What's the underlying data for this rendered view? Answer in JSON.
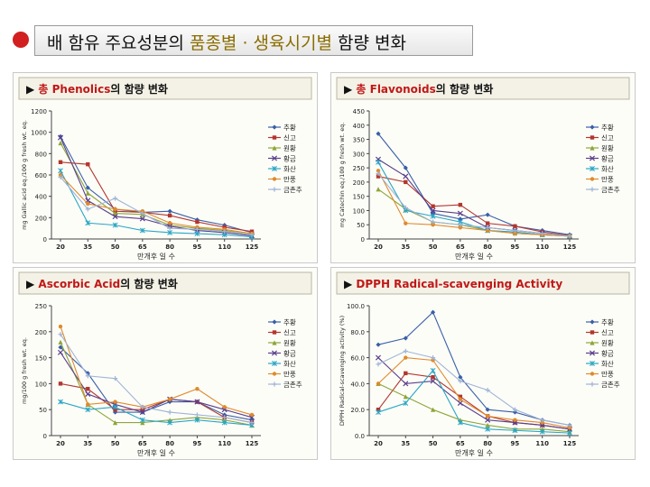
{
  "slide": {
    "title_pre": "배 함유 주요성분의 ",
    "title_highlight": "품종별 · 생육시기별",
    "title_post": " 함량 변화"
  },
  "colors": {
    "series": [
      "#3a5fa8",
      "#b2372f",
      "#8ca63a",
      "#5a3f8c",
      "#2aa6c6",
      "#e08a2c",
      "#9fb4d6"
    ],
    "panel_header_bg": "#f4f2e6"
  },
  "chart_data": [
    {
      "type": "line",
      "title_bullet": "▶",
      "title_prefix": "총 ",
      "title_main": "Phenolics",
      "title_suffix": "의 함량 변화",
      "ylabel": "mg Gallic acid eq./100 g fresh wt. eq.",
      "xlabel": "만개후 일 수",
      "ylim": [
        0,
        1200
      ],
      "yticks": [
        0,
        200,
        400,
        600,
        800,
        1000,
        1200
      ],
      "x": [
        20,
        35,
        50,
        65,
        80,
        95,
        110,
        125
      ],
      "legend_position": "right",
      "series": [
        {
          "name": "추황",
          "values": [
            960,
            480,
            280,
            250,
            260,
            180,
            130,
            60
          ]
        },
        {
          "name": "신고",
          "values": [
            720,
            700,
            260,
            250,
            220,
            160,
            110,
            70
          ]
        },
        {
          "name": "원황",
          "values": [
            900,
            430,
            240,
            230,
            130,
            100,
            80,
            40
          ]
        },
        {
          "name": "황금",
          "values": [
            950,
            360,
            210,
            190,
            120,
            80,
            60,
            30
          ]
        },
        {
          "name": "화산",
          "values": [
            640,
            150,
            130,
            80,
            60,
            50,
            40,
            20
          ]
        },
        {
          "name": "만풍",
          "values": [
            600,
            330,
            280,
            260,
            150,
            110,
            90,
            50
          ]
        },
        {
          "name": "금촌추",
          "values": [
            580,
            280,
            380,
            240,
            100,
            90,
            70,
            40
          ]
        }
      ]
    },
    {
      "type": "line",
      "title_bullet": "▶",
      "title_prefix": "총 ",
      "title_main": "Flavonoids",
      "title_suffix": "의 함량 변화",
      "ylabel": "mg Catechin eq./100 g fresh wt. eq.",
      "xlabel": "만개후 일 수",
      "ylim": [
        0,
        450
      ],
      "yticks": [
        0,
        50,
        100,
        150,
        200,
        250,
        300,
        350,
        400,
        450
      ],
      "x": [
        20,
        35,
        50,
        65,
        80,
        95,
        110,
        125
      ],
      "legend_position": "right",
      "series": [
        {
          "name": "추황",
          "values": [
            370,
            250,
            90,
            70,
            85,
            45,
            30,
            15
          ]
        },
        {
          "name": "신고",
          "values": [
            220,
            200,
            115,
            120,
            55,
            45,
            25,
            12
          ]
        },
        {
          "name": "원황",
          "values": [
            175,
            105,
            60,
            50,
            30,
            20,
            15,
            10
          ]
        },
        {
          "name": "황금",
          "values": [
            280,
            220,
            100,
            90,
            40,
            30,
            20,
            10
          ]
        },
        {
          "name": "화산",
          "values": [
            270,
            100,
            80,
            60,
            30,
            25,
            15,
            10
          ]
        },
        {
          "name": "만풍",
          "values": [
            240,
            55,
            50,
            40,
            30,
            20,
            15,
            10
          ]
        },
        {
          "name": "금촌추",
          "values": [
            230,
            110,
            60,
            50,
            40,
            30,
            20,
            10
          ]
        }
      ]
    },
    {
      "type": "line",
      "title_bullet": "▶",
      "title_prefix": "",
      "title_main": "Ascorbic Acid",
      "title_suffix": "의 함량 변화",
      "ylabel": "mg/100 g fresh wt. eq.",
      "xlabel": "만개후 일 수",
      "ylim": [
        0,
        250
      ],
      "yticks": [
        0,
        50,
        100,
        150,
        200,
        250
      ],
      "x": [
        20,
        35,
        50,
        65,
        80,
        95,
        110,
        125
      ],
      "legend_position": "right",
      "series": [
        {
          "name": "추황",
          "values": [
            170,
            120,
            45,
            45,
            65,
            65,
            40,
            30
          ]
        },
        {
          "name": "신고",
          "values": [
            100,
            90,
            50,
            50,
            70,
            65,
            35,
            25
          ]
        },
        {
          "name": "원황",
          "values": [
            180,
            60,
            25,
            25,
            30,
            35,
            30,
            20
          ]
        },
        {
          "name": "황금",
          "values": [
            160,
            80,
            60,
            45,
            70,
            65,
            50,
            35
          ]
        },
        {
          "name": "화산",
          "values": [
            65,
            50,
            55,
            30,
            25,
            30,
            25,
            20
          ]
        },
        {
          "name": "만풍",
          "values": [
            210,
            60,
            65,
            55,
            70,
            90,
            55,
            40
          ]
        },
        {
          "name": "금촌추",
          "values": [
            195,
            115,
            110,
            55,
            45,
            40,
            35,
            25
          ]
        }
      ]
    },
    {
      "type": "line",
      "title_bullet": "▶",
      "title_prefix": "",
      "title_main": "DPPH Radical-scavenging Activity",
      "title_suffix": "",
      "ylabel": "DPPH Radical-scavenging activity (%)",
      "xlabel": "만개후 일 수",
      "ylim": [
        0,
        100
      ],
      "yticks": [
        0.0,
        20.0,
        40.0,
        60.0,
        80.0,
        100.0
      ],
      "x": [
        20,
        35,
        50,
        65,
        80,
        95,
        110,
        125
      ],
      "legend_position": "right",
      "series": [
        {
          "name": "추황",
          "values": [
            70,
            75,
            95,
            45,
            20,
            18,
            12,
            8
          ]
        },
        {
          "name": "신고",
          "values": [
            20,
            48,
            45,
            30,
            15,
            10,
            8,
            5
          ]
        },
        {
          "name": "원황",
          "values": [
            40,
            30,
            20,
            12,
            8,
            5,
            5,
            3
          ]
        },
        {
          "name": "황금",
          "values": [
            60,
            40,
            42,
            25,
            12,
            10,
            8,
            5
          ]
        },
        {
          "name": "화산",
          "values": [
            18,
            25,
            50,
            10,
            5,
            4,
            3,
            2
          ]
        },
        {
          "name": "만풍",
          "values": [
            40,
            60,
            58,
            28,
            15,
            12,
            10,
            6
          ]
        },
        {
          "name": "금촌추",
          "values": [
            55,
            65,
            60,
            42,
            35,
            20,
            12,
            8
          ]
        }
      ]
    }
  ]
}
